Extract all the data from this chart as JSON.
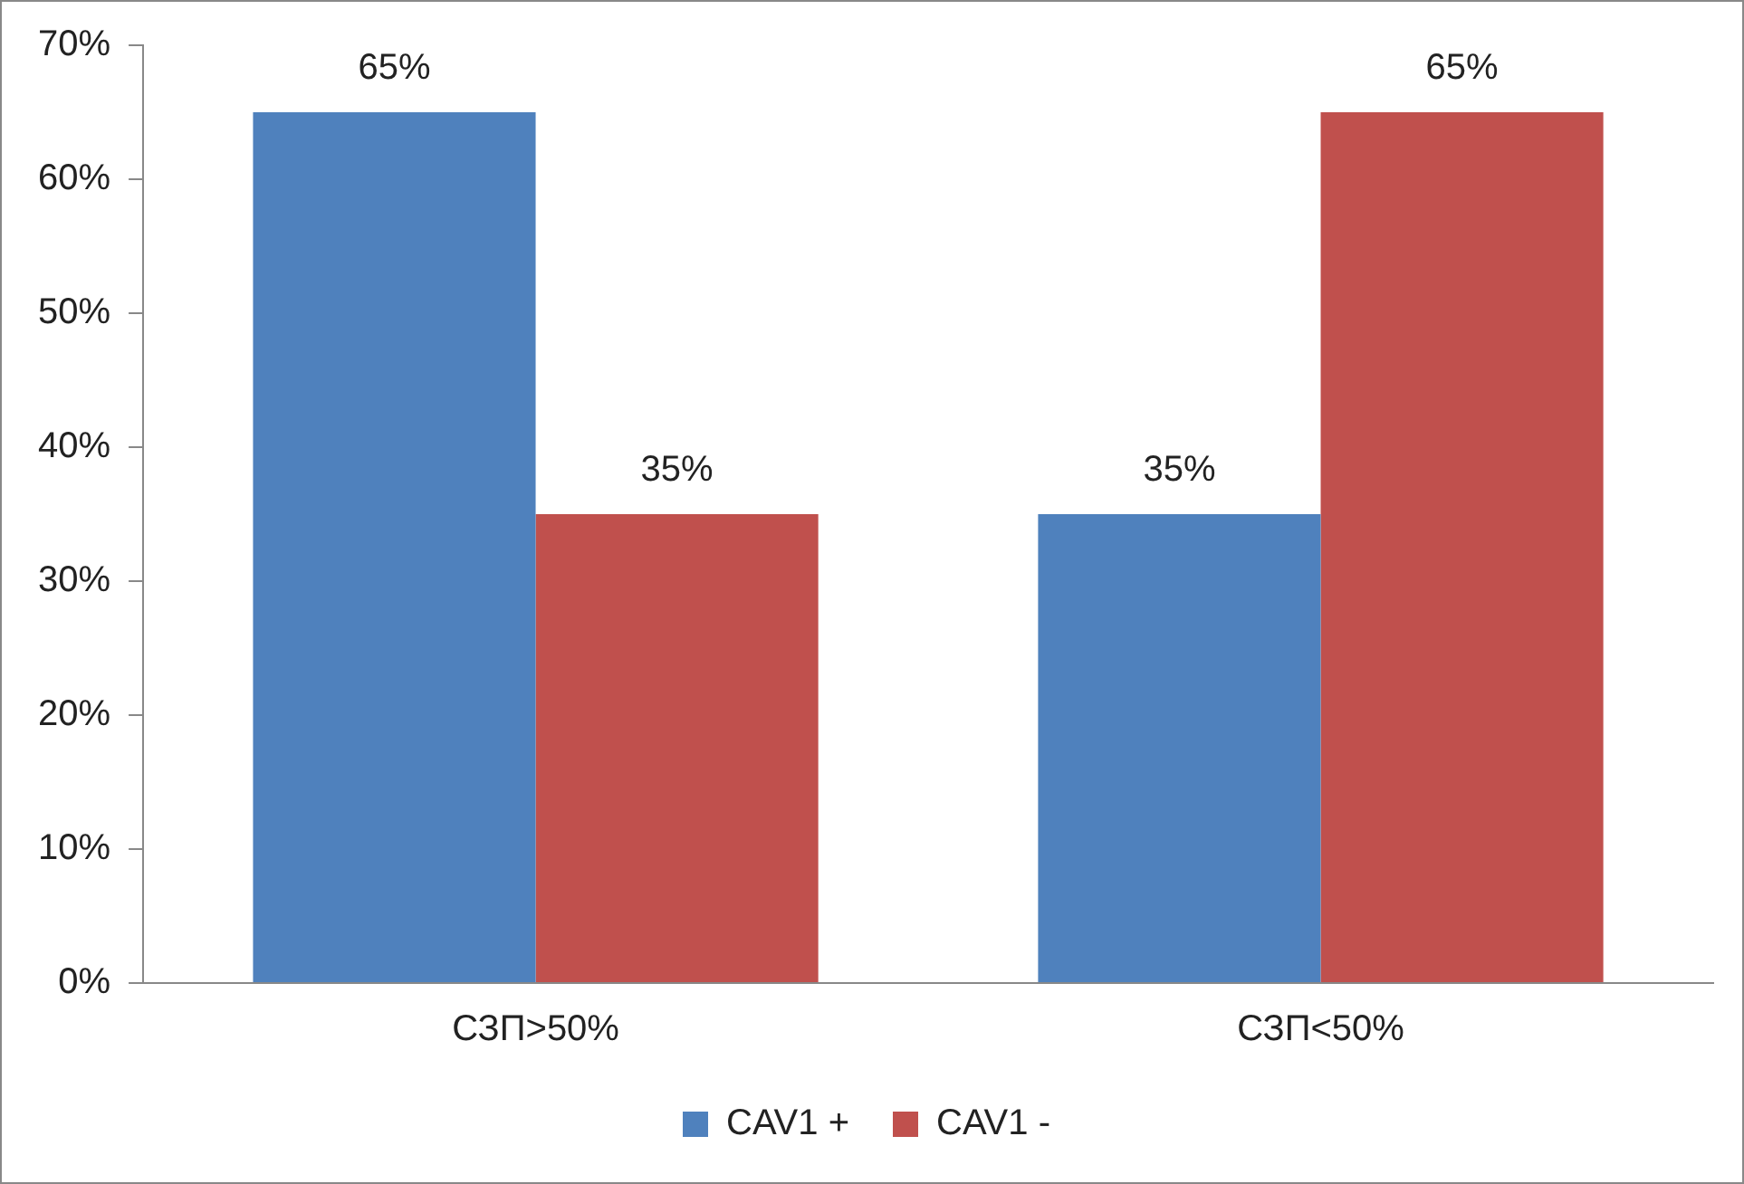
{
  "chart_data": {
    "type": "bar",
    "categories": [
      "СЗП>50%",
      "СЗП<50%"
    ],
    "series": [
      {
        "name": "CAV1 +",
        "color": "#4f81bd",
        "values": [
          65,
          35
        ],
        "value_labels": [
          "65%",
          "35%"
        ]
      },
      {
        "name": "CAV1 -",
        "color": "#c0504d",
        "values": [
          35,
          65
        ],
        "value_labels": [
          "35%",
          "65%"
        ]
      }
    ],
    "ylim": [
      0,
      70
    ],
    "yticks": [
      {
        "value": 0,
        "label": "0%"
      },
      {
        "value": 10,
        "label": "10%"
      },
      {
        "value": 20,
        "label": "20%"
      },
      {
        "value": 30,
        "label": "30%"
      },
      {
        "value": 40,
        "label": "40%"
      },
      {
        "value": 50,
        "label": "50%"
      },
      {
        "value": 60,
        "label": "60%"
      },
      {
        "value": 70,
        "label": "70%"
      }
    ],
    "grid": false,
    "legend": "bottom"
  }
}
